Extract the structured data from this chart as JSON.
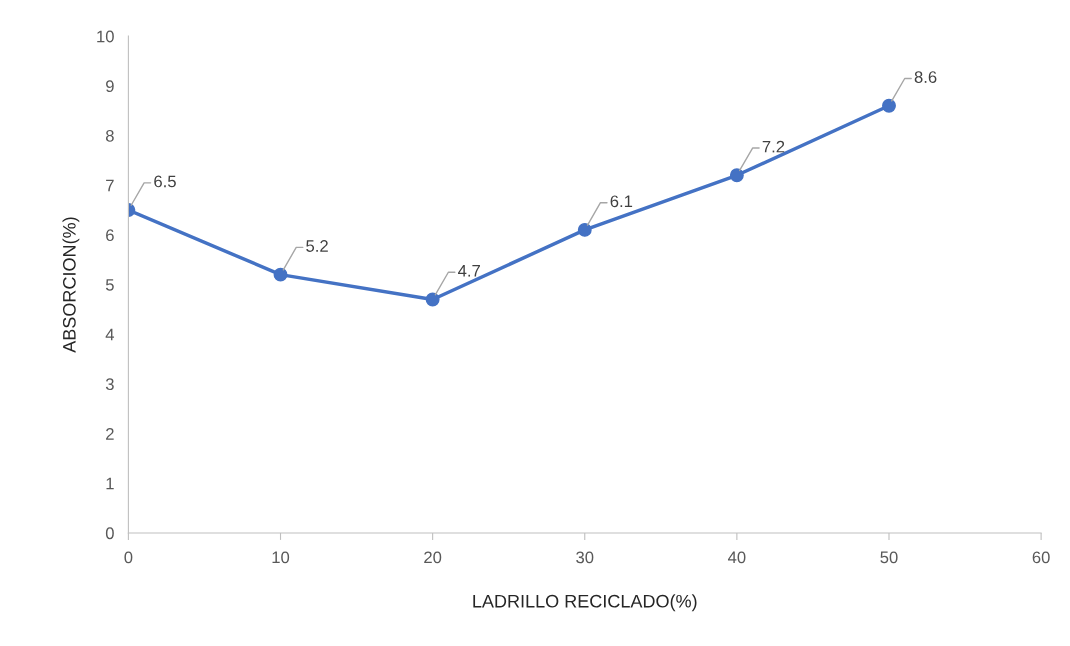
{
  "chart_data": {
    "type": "line",
    "xlabel": "LADRILLO RECICLADO(%)",
    "ylabel": "ABSORCION(%)",
    "x": [
      0,
      10,
      20,
      30,
      40,
      50
    ],
    "series": [
      {
        "color": "#4472c4",
        "values": [
          6.5,
          5.2,
          4.7,
          6.1,
          7.2,
          8.6
        ]
      }
    ],
    "xlim": [
      0,
      60
    ],
    "xticks": [
      0,
      10,
      20,
      30,
      40,
      50,
      60
    ],
    "ylim": [
      0,
      10
    ],
    "yticks": [
      0,
      1,
      2,
      3,
      4,
      5,
      6,
      7,
      8,
      9,
      10
    ],
    "grid": false,
    "legend": false,
    "marker": "circle",
    "line_style": "solid",
    "data_labels": true
  }
}
